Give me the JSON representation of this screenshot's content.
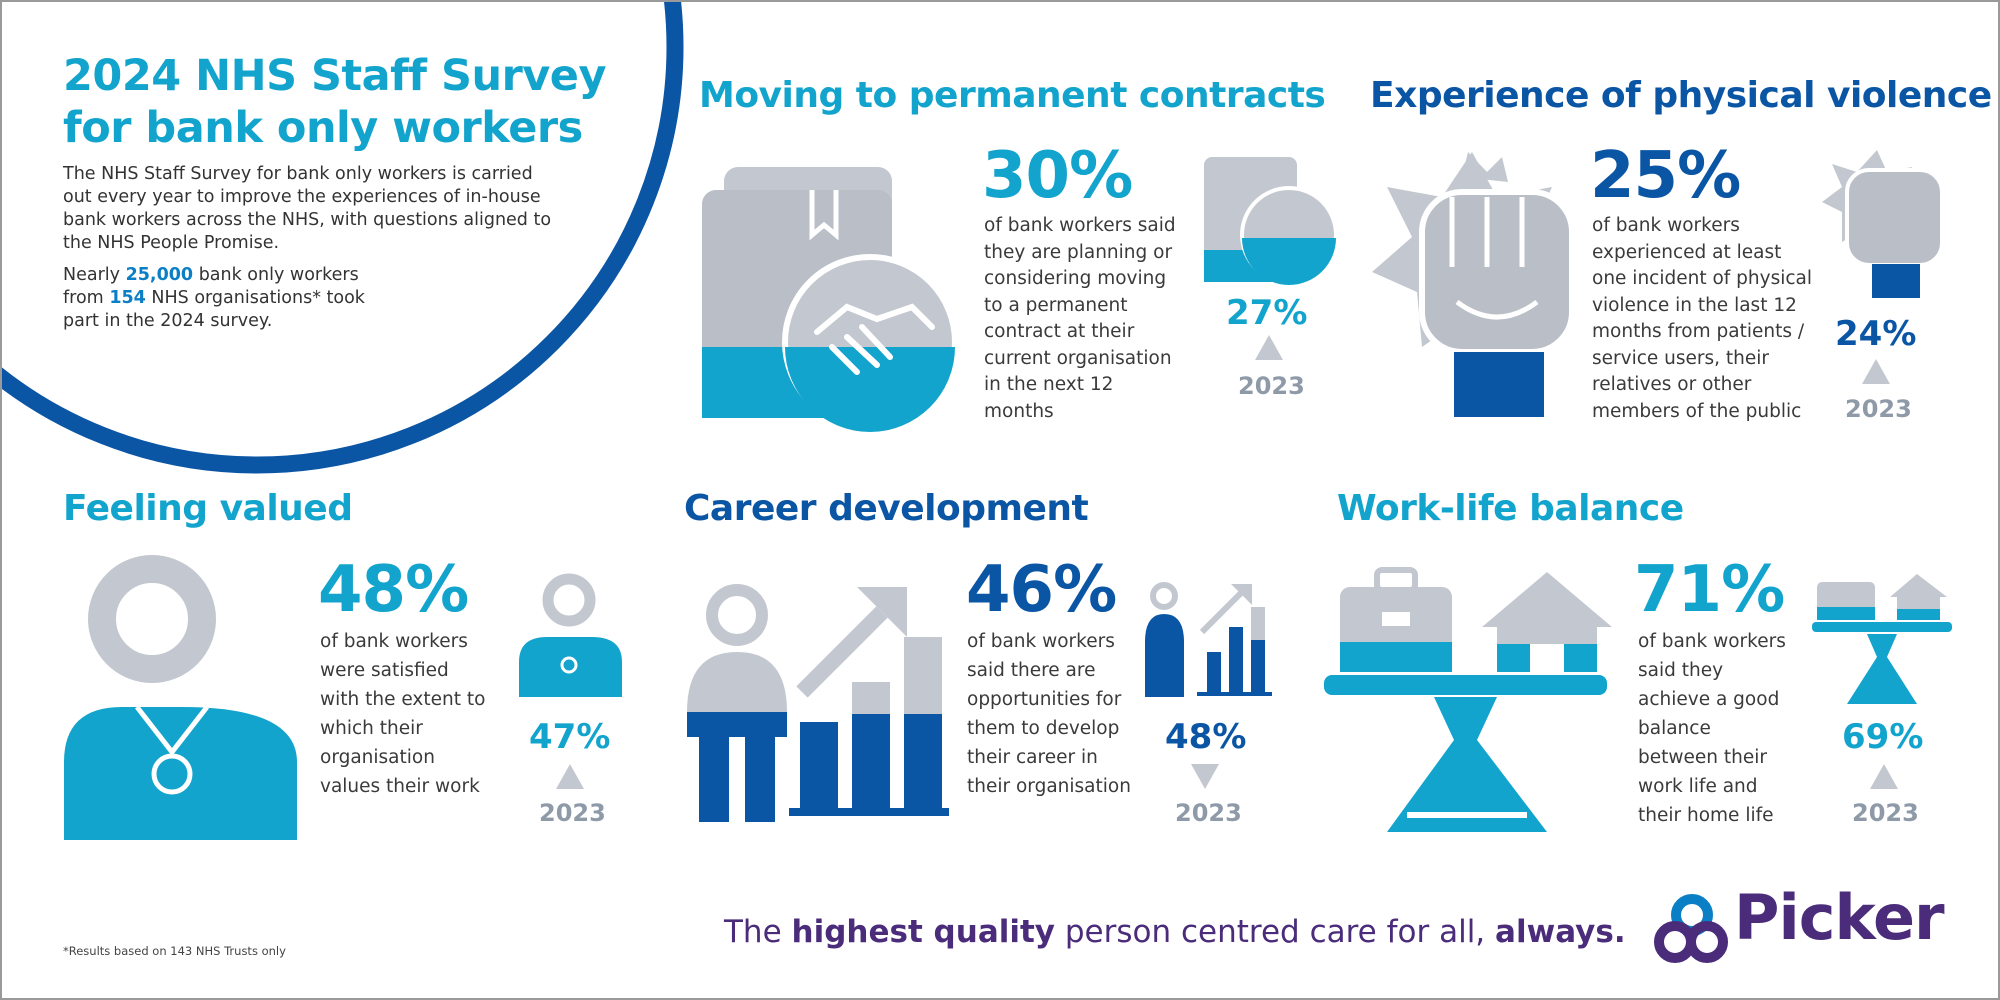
{
  "header": {
    "title": "2024 NHS Staff Survey for bank only workers",
    "intro": "The NHS Staff Survey for bank only workers is carried out every year to improve the experiences of in-house bank workers across the NHS, with questions aligned to the NHS People Promise.",
    "participation": [
      "Nearly",
      "25,000",
      "bank only workers from",
      "154",
      "NHS organisations* took part in the 2024 survey."
    ]
  },
  "sections": [
    {
      "title": "Moving to permanent contracts",
      "value": "30%",
      "description": "of bank workers said they are planning or considering moving to a permanent contract at their current organisation in the next 12 months",
      "previous": "27%",
      "year": "2023"
    },
    {
      "title": "Experience of physical violence",
      "value": "25%",
      "description": "of bank workers experienced at least one incident of physical violence in the last 12 months from patients / service users, their relatives or other members of the public",
      "previous": "24%",
      "year": "2023"
    },
    {
      "title": "Feeling valued",
      "value": "48%",
      "description": "of bank workers were satisfied with the extent to which their organisation values their work",
      "previous": "47%",
      "year": "2023"
    },
    {
      "title": "Career development",
      "value": "46%",
      "description": "of bank workers said there are opportunities for them to develop their career in their organisation",
      "previous": "48%",
      "year": "2023"
    },
    {
      "title": "Work-life balance",
      "value": "71%",
      "description": "of bank workers said they achieve a good balance between their work life and their home life",
      "previous": "69%",
      "year": "2023"
    }
  ],
  "footer": {
    "footnote": "*Results based on 143 NHS Trusts only",
    "tagline": [
      "The",
      "highest quality",
      "person centred care for all,",
      "always."
    ],
    "logo": "Picker"
  }
}
